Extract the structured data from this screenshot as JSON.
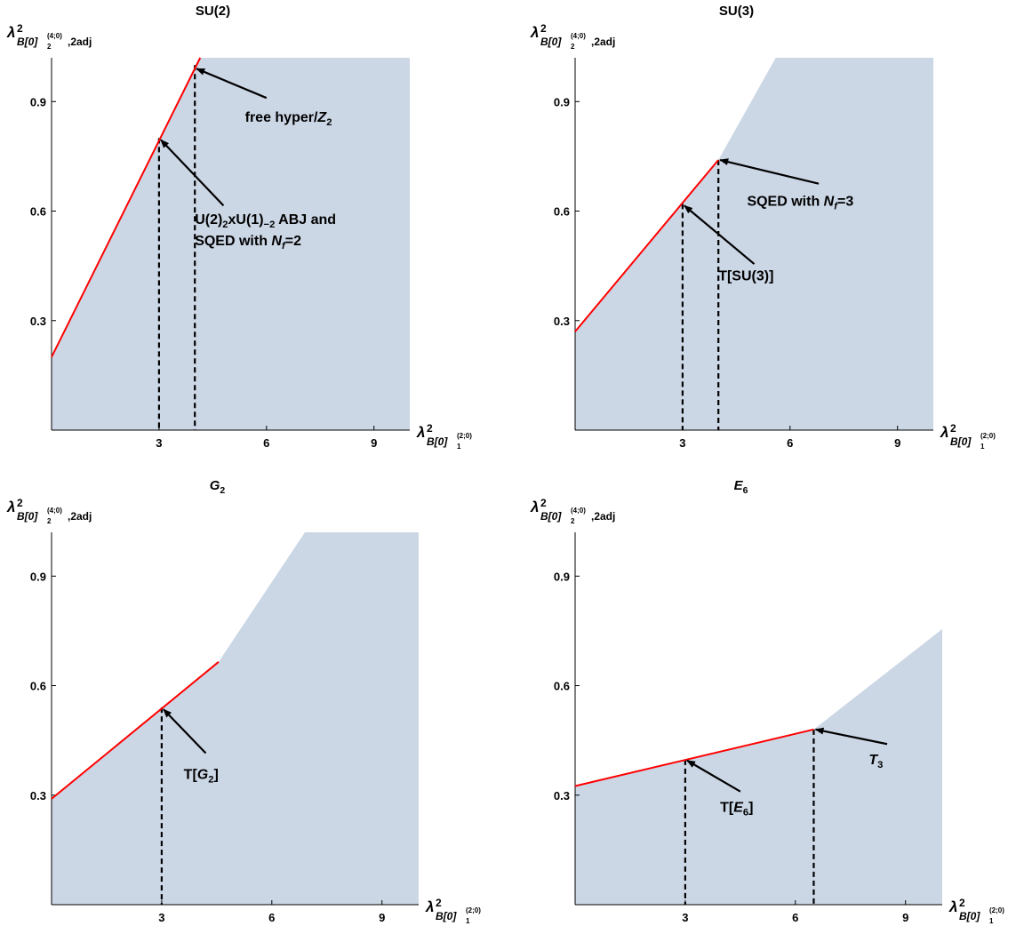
{
  "chart_data": [
    {
      "type": "area",
      "title": "SU(2)",
      "title_parts": [
        {
          "t": "SU(2)",
          "i": false
        }
      ],
      "xlim": [
        0,
        10
      ],
      "ylim": [
        0,
        1.02
      ],
      "xticks": [
        3,
        6,
        9
      ],
      "yticks": [
        0.3,
        0.6,
        0.9
      ],
      "region": [
        [
          0,
          0.2
        ],
        [
          4.15,
          1.02
        ],
        [
          10,
          1.02
        ],
        [
          10,
          0
        ],
        [
          0,
          0
        ]
      ],
      "boundary_line": [
        [
          0,
          0.2
        ],
        [
          4.15,
          1.02
        ]
      ],
      "dashed_lines": [
        {
          "x": 3,
          "y": 0.8
        },
        {
          "x": 4,
          "y": 1.0
        }
      ],
      "annotations": [
        {
          "name": "free-hyper",
          "lines": [
            [
              {
                "t": "free hyper/",
                "i": false
              },
              {
                "t": "Z",
                "i": true
              },
              {
                "t": "2",
                "i": false,
                "sub": true
              }
            ]
          ],
          "point": [
            4.05,
            0.99
          ],
          "tail": [
            6.0,
            0.91
          ],
          "text_at": [
            5.4,
            0.845
          ],
          "anchor": "start"
        },
        {
          "name": "abj-sqed",
          "lines": [
            [
              {
                "t": "U(2)",
                "i": false
              },
              {
                "t": "2",
                "i": false,
                "sub": true
              },
              {
                "t": "xU(1)",
                "i": false
              },
              {
                "t": "−2",
                "i": false,
                "sub": true
              },
              {
                "t": " ABJ and",
                "i": false
              }
            ],
            [
              {
                "t": "SQED with ",
                "i": false
              },
              {
                "t": "N",
                "i": true
              },
              {
                "t": "f",
                "i": true,
                "sub": true
              },
              {
                "t": "=2",
                "i": false
              }
            ]
          ],
          "point": [
            3.05,
            0.795
          ],
          "tail": [
            4.8,
            0.615
          ],
          "text_at": [
            4.0,
            0.565
          ],
          "anchor": "start"
        }
      ]
    },
    {
      "type": "area",
      "title": "SU(3)",
      "title_parts": [
        {
          "t": "SU(3)",
          "i": false
        }
      ],
      "xlim": [
        0,
        10
      ],
      "ylim": [
        0,
        1.02
      ],
      "xticks": [
        3,
        6,
        9
      ],
      "yticks": [
        0.3,
        0.6,
        0.9
      ],
      "region": [
        [
          0,
          0.27
        ],
        [
          4,
          0.74
        ],
        [
          5.6,
          1.02
        ],
        [
          10,
          1.02
        ],
        [
          10,
          0
        ],
        [
          0,
          0
        ]
      ],
      "boundary_line": [
        [
          0,
          0.27
        ],
        [
          4,
          0.74
        ]
      ],
      "dashed_lines": [
        {
          "x": 3,
          "y": 0.62
        },
        {
          "x": 4,
          "y": 0.74
        }
      ],
      "annotations": [
        {
          "name": "sqed-nf3",
          "lines": [
            [
              {
                "t": "SQED with ",
                "i": false
              },
              {
                "t": "N",
                "i": true
              },
              {
                "t": "f",
                "i": true,
                "sub": true
              },
              {
                "t": "=3",
                "i": false
              }
            ]
          ],
          "point": [
            4.05,
            0.74
          ],
          "tail": [
            6.8,
            0.675
          ],
          "text_at": [
            4.8,
            0.615
          ],
          "anchor": "start"
        },
        {
          "name": "t-su3",
          "lines": [
            [
              {
                "t": "T[SU(3)]",
                "i": false
              }
            ]
          ],
          "point": [
            3.05,
            0.615
          ],
          "tail": [
            5.0,
            0.455
          ],
          "text_at": [
            4.0,
            0.41
          ],
          "anchor": "start"
        }
      ]
    },
    {
      "type": "area",
      "title": "G2",
      "title_parts": [
        {
          "t": "G",
          "i": true
        },
        {
          "t": "2",
          "i": false,
          "sub": true
        }
      ],
      "xlim": [
        0,
        10
      ],
      "ylim": [
        0,
        1.02
      ],
      "xticks": [
        3,
        6,
        9
      ],
      "yticks": [
        0.3,
        0.6,
        0.9
      ],
      "region": [
        [
          0,
          0.29
        ],
        [
          4.55,
          0.665
        ],
        [
          6.9,
          1.02
        ],
        [
          10,
          1.02
        ],
        [
          10,
          0
        ],
        [
          0,
          0
        ]
      ],
      "boundary_line": [
        [
          0,
          0.29
        ],
        [
          4.55,
          0.665
        ]
      ],
      "dashed_lines": [
        {
          "x": 3,
          "y": 0.54
        }
      ],
      "annotations": [
        {
          "name": "t-g2",
          "lines": [
            [
              {
                "t": "T[",
                "i": false
              },
              {
                "t": "G",
                "i": true
              },
              {
                "t": "2",
                "i": false,
                "sub": true
              },
              {
                "t": "]",
                "i": false
              }
            ]
          ],
          "point": [
            3.05,
            0.535
          ],
          "tail": [
            4.2,
            0.415
          ],
          "text_at": [
            3.6,
            0.345
          ],
          "anchor": "start"
        }
      ]
    },
    {
      "type": "area",
      "title": "E6",
      "title_parts": [
        {
          "t": "E",
          "i": true
        },
        {
          "t": "6",
          "i": false,
          "sub": true
        }
      ],
      "xlim": [
        0,
        10
      ],
      "ylim": [
        0,
        1.02
      ],
      "xticks": [
        3,
        6,
        9
      ],
      "yticks": [
        0.3,
        0.6,
        0.9
      ],
      "region": [
        [
          0,
          0.325
        ],
        [
          6.5,
          0.48
        ],
        [
          10,
          0.755
        ],
        [
          10,
          0
        ],
        [
          0,
          0
        ]
      ],
      "boundary_line": [
        [
          0,
          0.325
        ],
        [
          6.5,
          0.48
        ]
      ],
      "dashed_lines": [
        {
          "x": 3,
          "y": 0.397
        },
        {
          "x": 6.5,
          "y": 0.48
        }
      ],
      "annotations": [
        {
          "name": "t3",
          "lines": [
            [
              {
                "t": "T",
                "i": true
              },
              {
                "t": "3",
                "i": false,
                "sub": true
              }
            ]
          ],
          "point": [
            6.55,
            0.48
          ],
          "tail": [
            8.5,
            0.44
          ],
          "text_at": [
            8.0,
            0.385
          ],
          "anchor": "start"
        },
        {
          "name": "t-e6",
          "lines": [
            [
              {
                "t": "T[",
                "i": false
              },
              {
                "t": "E",
                "i": true
              },
              {
                "t": "6",
                "i": false,
                "sub": true
              },
              {
                "t": "]",
                "i": false
              }
            ]
          ],
          "point": [
            3.05,
            0.395
          ],
          "tail": [
            4.5,
            0.31
          ],
          "text_at": [
            3.95,
            0.255
          ],
          "anchor": "start"
        }
      ]
    }
  ],
  "axis_labels": {
    "y": {
      "symbol": "λ",
      "sup": "2",
      "subscript": "B[0]",
      "sub_sub": "2",
      "sub_sup": "(4;0)",
      "suffix": ",2adj"
    },
    "x": {
      "symbol": "λ",
      "sup": "2",
      "subscript": "B[0]",
      "sub_sub": "1",
      "sub_sup": "(2;0)"
    }
  },
  "colors": {
    "fill": "#ccd7e6",
    "boundary": "#ff0000",
    "axis": "#000000",
    "dashed": "#000000",
    "arrow": "#000000"
  }
}
